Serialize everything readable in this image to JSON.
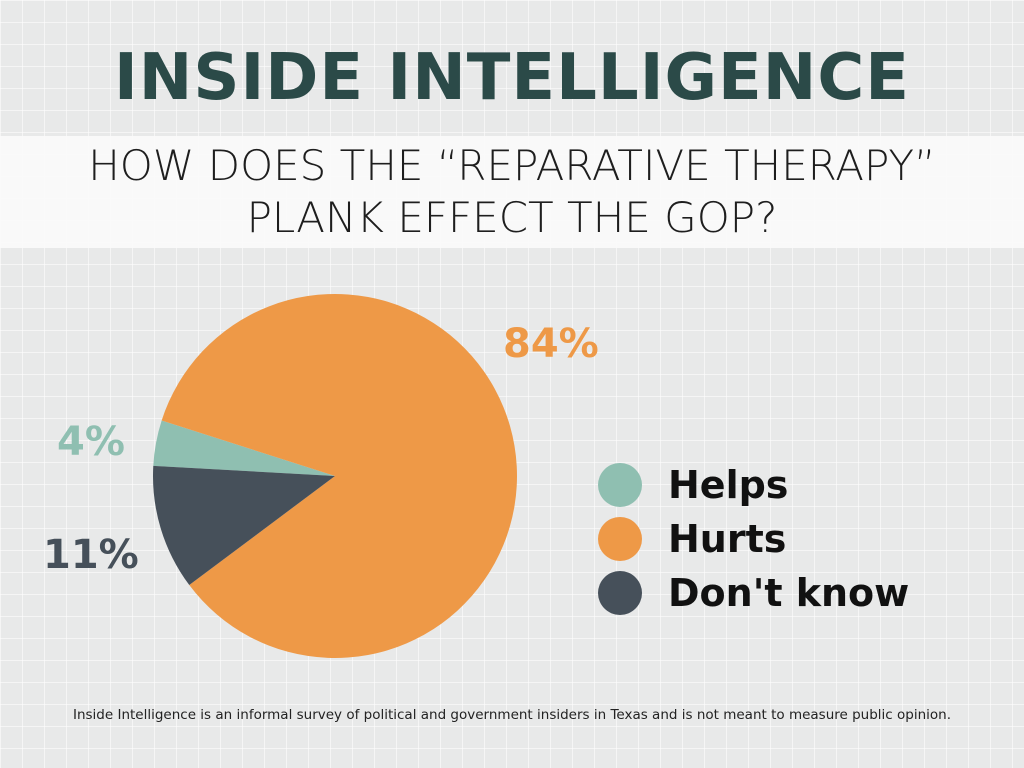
{
  "header": {
    "title": "INSIDE INTELLIGENCE",
    "question_line1": "HOW DOES THE “REPARATIVE THERAPY”",
    "question_line2": "PLANK EFFECT THE GOP?"
  },
  "chart_data": {
    "type": "pie",
    "title": "HOW DOES THE “REPARATIVE THERAPY” PLANK EFFECT THE GOP?",
    "categories": [
      "Helps",
      "Hurts",
      "Don't know"
    ],
    "values": [
      4,
      84,
      11
    ],
    "labels": [
      "4%",
      "84%",
      "11%"
    ],
    "colors": [
      "#8fbfb1",
      "#ee9947",
      "#46505a"
    ],
    "legend_position": "right"
  },
  "footer": {
    "note": "Inside Intelligence is an informal survey of political and government insiders in Texas and is not meant to measure public opinion."
  }
}
